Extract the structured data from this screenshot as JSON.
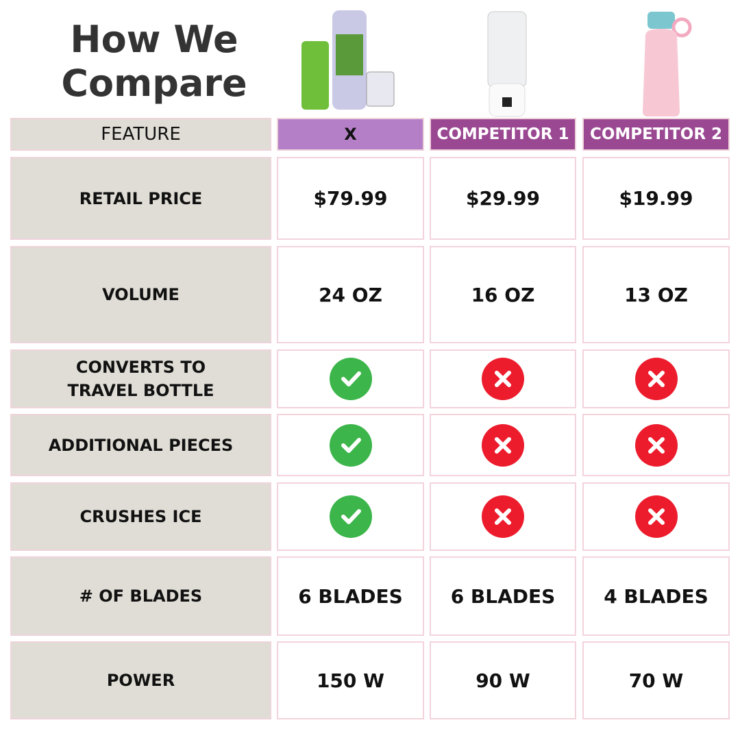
{
  "title": "How We Compare",
  "header": {
    "feature": "FEATURE",
    "cols": [
      "X",
      "COMPETITOR 1",
      "COMPETITOR 2"
    ]
  },
  "colors": {
    "check": "#3cb54a",
    "cross": "#ec1c2d",
    "header_x": "#b57fc8",
    "header_comp": "#9a4892",
    "feature_bg": "#e0ddd6"
  },
  "rows": [
    {
      "label": "RETAIL PRICE",
      "values": [
        "$79.99",
        "$29.99",
        "$19.99"
      ]
    },
    {
      "label": "VOLUME",
      "values": [
        "24 OZ",
        "16 OZ",
        "13 OZ"
      ]
    },
    {
      "label": "CONVERTS TO TRAVEL BOTTLE",
      "values": [
        "check-icon",
        "x-icon",
        "x-icon"
      ]
    },
    {
      "label": "ADDITIONAL PIECES",
      "values": [
        "check-icon",
        "x-icon",
        "x-icon"
      ]
    },
    {
      "label": "CRUSHES ICE",
      "values": [
        "check-icon",
        "x-icon",
        "x-icon"
      ]
    },
    {
      "label": "# OF BLADES",
      "values": [
        "6 BLADES",
        "6 BLADES",
        "4 BLADES"
      ]
    },
    {
      "label": "POWER",
      "values": [
        "150 W",
        "90 W",
        "70 W"
      ]
    }
  ]
}
